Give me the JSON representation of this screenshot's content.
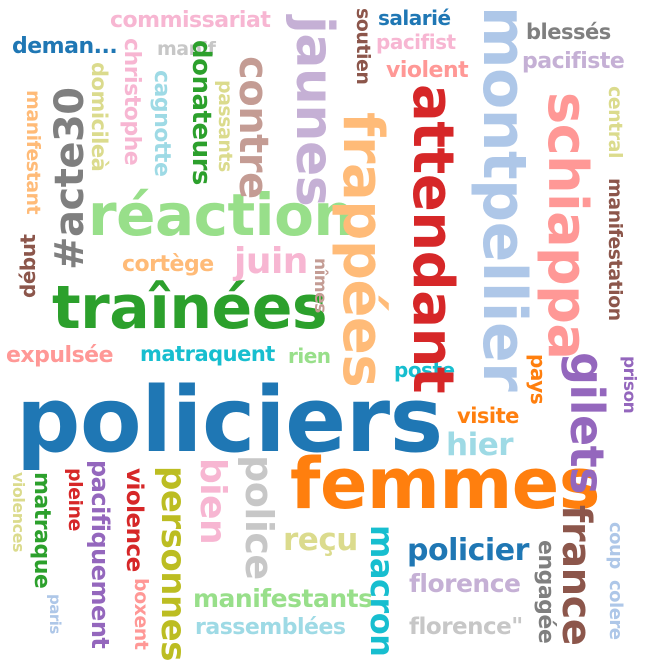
{
  "words": [
    {
      "id": "policiers",
      "text": "policiers",
      "color": "#1f77b4"
    },
    {
      "id": "femmes",
      "text": "femmes",
      "color": "#ff7f0e"
    },
    {
      "id": "trainees",
      "text": "traînées",
      "color": "#2ca02c"
    },
    {
      "id": "reaction",
      "text": "réaction",
      "color": "#98df8a"
    },
    {
      "id": "attendant",
      "text": "attendant",
      "color": "#d62728"
    },
    {
      "id": "frappees",
      "text": "frappées",
      "color": "#ffbb78"
    },
    {
      "id": "montpellier",
      "text": "montpellier",
      "color": "#aec7e8"
    },
    {
      "id": "schiappa",
      "text": "schiappa",
      "color": "#ff9896"
    },
    {
      "id": "jaunes",
      "text": "jaunes",
      "color": "#c5b0d5"
    },
    {
      "id": "contre",
      "text": "contre",
      "color": "#c49c94"
    },
    {
      "id": "gilets",
      "text": "gilets",
      "color": "#9467bd"
    },
    {
      "id": "france",
      "text": "france",
      "color": "#8c564b"
    },
    {
      "id": "acte30",
      "text": "#acte30",
      "color": "#7f7f7f"
    },
    {
      "id": "commissariat",
      "text": "commissariat",
      "color": "#f7b6d2"
    },
    {
      "id": "salarie",
      "text": "salarié",
      "color": "#1f77b4"
    },
    {
      "id": "blesses",
      "text": "blessés",
      "color": "#7f7f7f"
    },
    {
      "id": "deman",
      "text": "deman...",
      "color": "#1f77b4"
    },
    {
      "id": "manif",
      "text": "manif",
      "color": "#c7c7c7"
    },
    {
      "id": "soutien",
      "text": "soutien",
      "color": "#8c564b"
    },
    {
      "id": "pacifist",
      "text": "pacifist",
      "color": "#f7b6d2"
    },
    {
      "id": "pacifiste",
      "text": "pacifiste",
      "color": "#c5b0d5"
    },
    {
      "id": "violent",
      "text": "violent",
      "color": "#ff9896"
    },
    {
      "id": "christophe",
      "text": "christophe",
      "color": "#f7b6d2"
    },
    {
      "id": "domicilea",
      "text": "domicileà",
      "color": "#dbdb8d"
    },
    {
      "id": "cagnotte",
      "text": "cagnotte",
      "color": "#9edae5"
    },
    {
      "id": "donateurs",
      "text": "donateurs",
      "color": "#2ca02c"
    },
    {
      "id": "passants",
      "text": "passants",
      "color": "#dbdb8d"
    },
    {
      "id": "manifestant",
      "text": "manifestant",
      "color": "#ffbb78"
    },
    {
      "id": "central",
      "text": "central",
      "color": "#dbdb8d"
    },
    {
      "id": "manifestation",
      "text": "manifestation",
      "color": "#8c564b"
    },
    {
      "id": "debut",
      "text": "début",
      "color": "#8c564b"
    },
    {
      "id": "cortege",
      "text": "cortège",
      "color": "#ffbb78"
    },
    {
      "id": "juin",
      "text": "juin",
      "color": "#f7b6d2"
    },
    {
      "id": "nimes",
      "text": "nîmes",
      "color": "#c49c94"
    },
    {
      "id": "expulsee",
      "text": "expulsée",
      "color": "#ff9896"
    },
    {
      "id": "matraquent",
      "text": "matraquent",
      "color": "#17becf"
    },
    {
      "id": "rien",
      "text": "rien",
      "color": "#98df8a"
    },
    {
      "id": "poste",
      "text": "poste",
      "color": "#17becf"
    },
    {
      "id": "pays",
      "text": "pays",
      "color": "#ff7f0e"
    },
    {
      "id": "prison",
      "text": "prison",
      "color": "#9467bd"
    },
    {
      "id": "visite",
      "text": "visite",
      "color": "#ff7f0e"
    },
    {
      "id": "hier",
      "text": "hier",
      "color": "#9edae5"
    },
    {
      "id": "bien",
      "text": "bien",
      "color": "#f7b6d2"
    },
    {
      "id": "police",
      "text": "police",
      "color": "#c7c7c7"
    },
    {
      "id": "personnes",
      "text": "personnes",
      "color": "#bcbd22"
    },
    {
      "id": "violence",
      "text": "violence",
      "color": "#d62728"
    },
    {
      "id": "pacifiquement",
      "text": "pacifiquement",
      "color": "#9467bd"
    },
    {
      "id": "pleine",
      "text": "pleine",
      "color": "#d62728"
    },
    {
      "id": "matraque",
      "text": "matraque",
      "color": "#2ca02c"
    },
    {
      "id": "violences",
      "text": "violences",
      "color": "#dbdb8d"
    },
    {
      "id": "paris",
      "text": "paris",
      "color": "#aec7e8"
    },
    {
      "id": "boxent",
      "text": "boxent",
      "color": "#ff9896"
    },
    {
      "id": "recu",
      "text": "reçu",
      "color": "#dbdb8d"
    },
    {
      "id": "macron",
      "text": "macron",
      "color": "#17becf"
    },
    {
      "id": "policier",
      "text": "policier",
      "color": "#1f77b4"
    },
    {
      "id": "engagee",
      "text": "engagée",
      "color": "#7f7f7f"
    },
    {
      "id": "coup",
      "text": "coup",
      "color": "#aec7e8"
    },
    {
      "id": "colere",
      "text": "colere",
      "color": "#aec7e8"
    },
    {
      "id": "florence",
      "text": "florence",
      "color": "#c5b0d5"
    },
    {
      "id": "florence_q",
      "text": "florence\"",
      "color": "#c7c7c7"
    },
    {
      "id": "manifestants",
      "text": "manifestants",
      "color": "#98df8a"
    },
    {
      "id": "rassemblees",
      "text": "rassemblées",
      "color": "#9edae5"
    }
  ]
}
